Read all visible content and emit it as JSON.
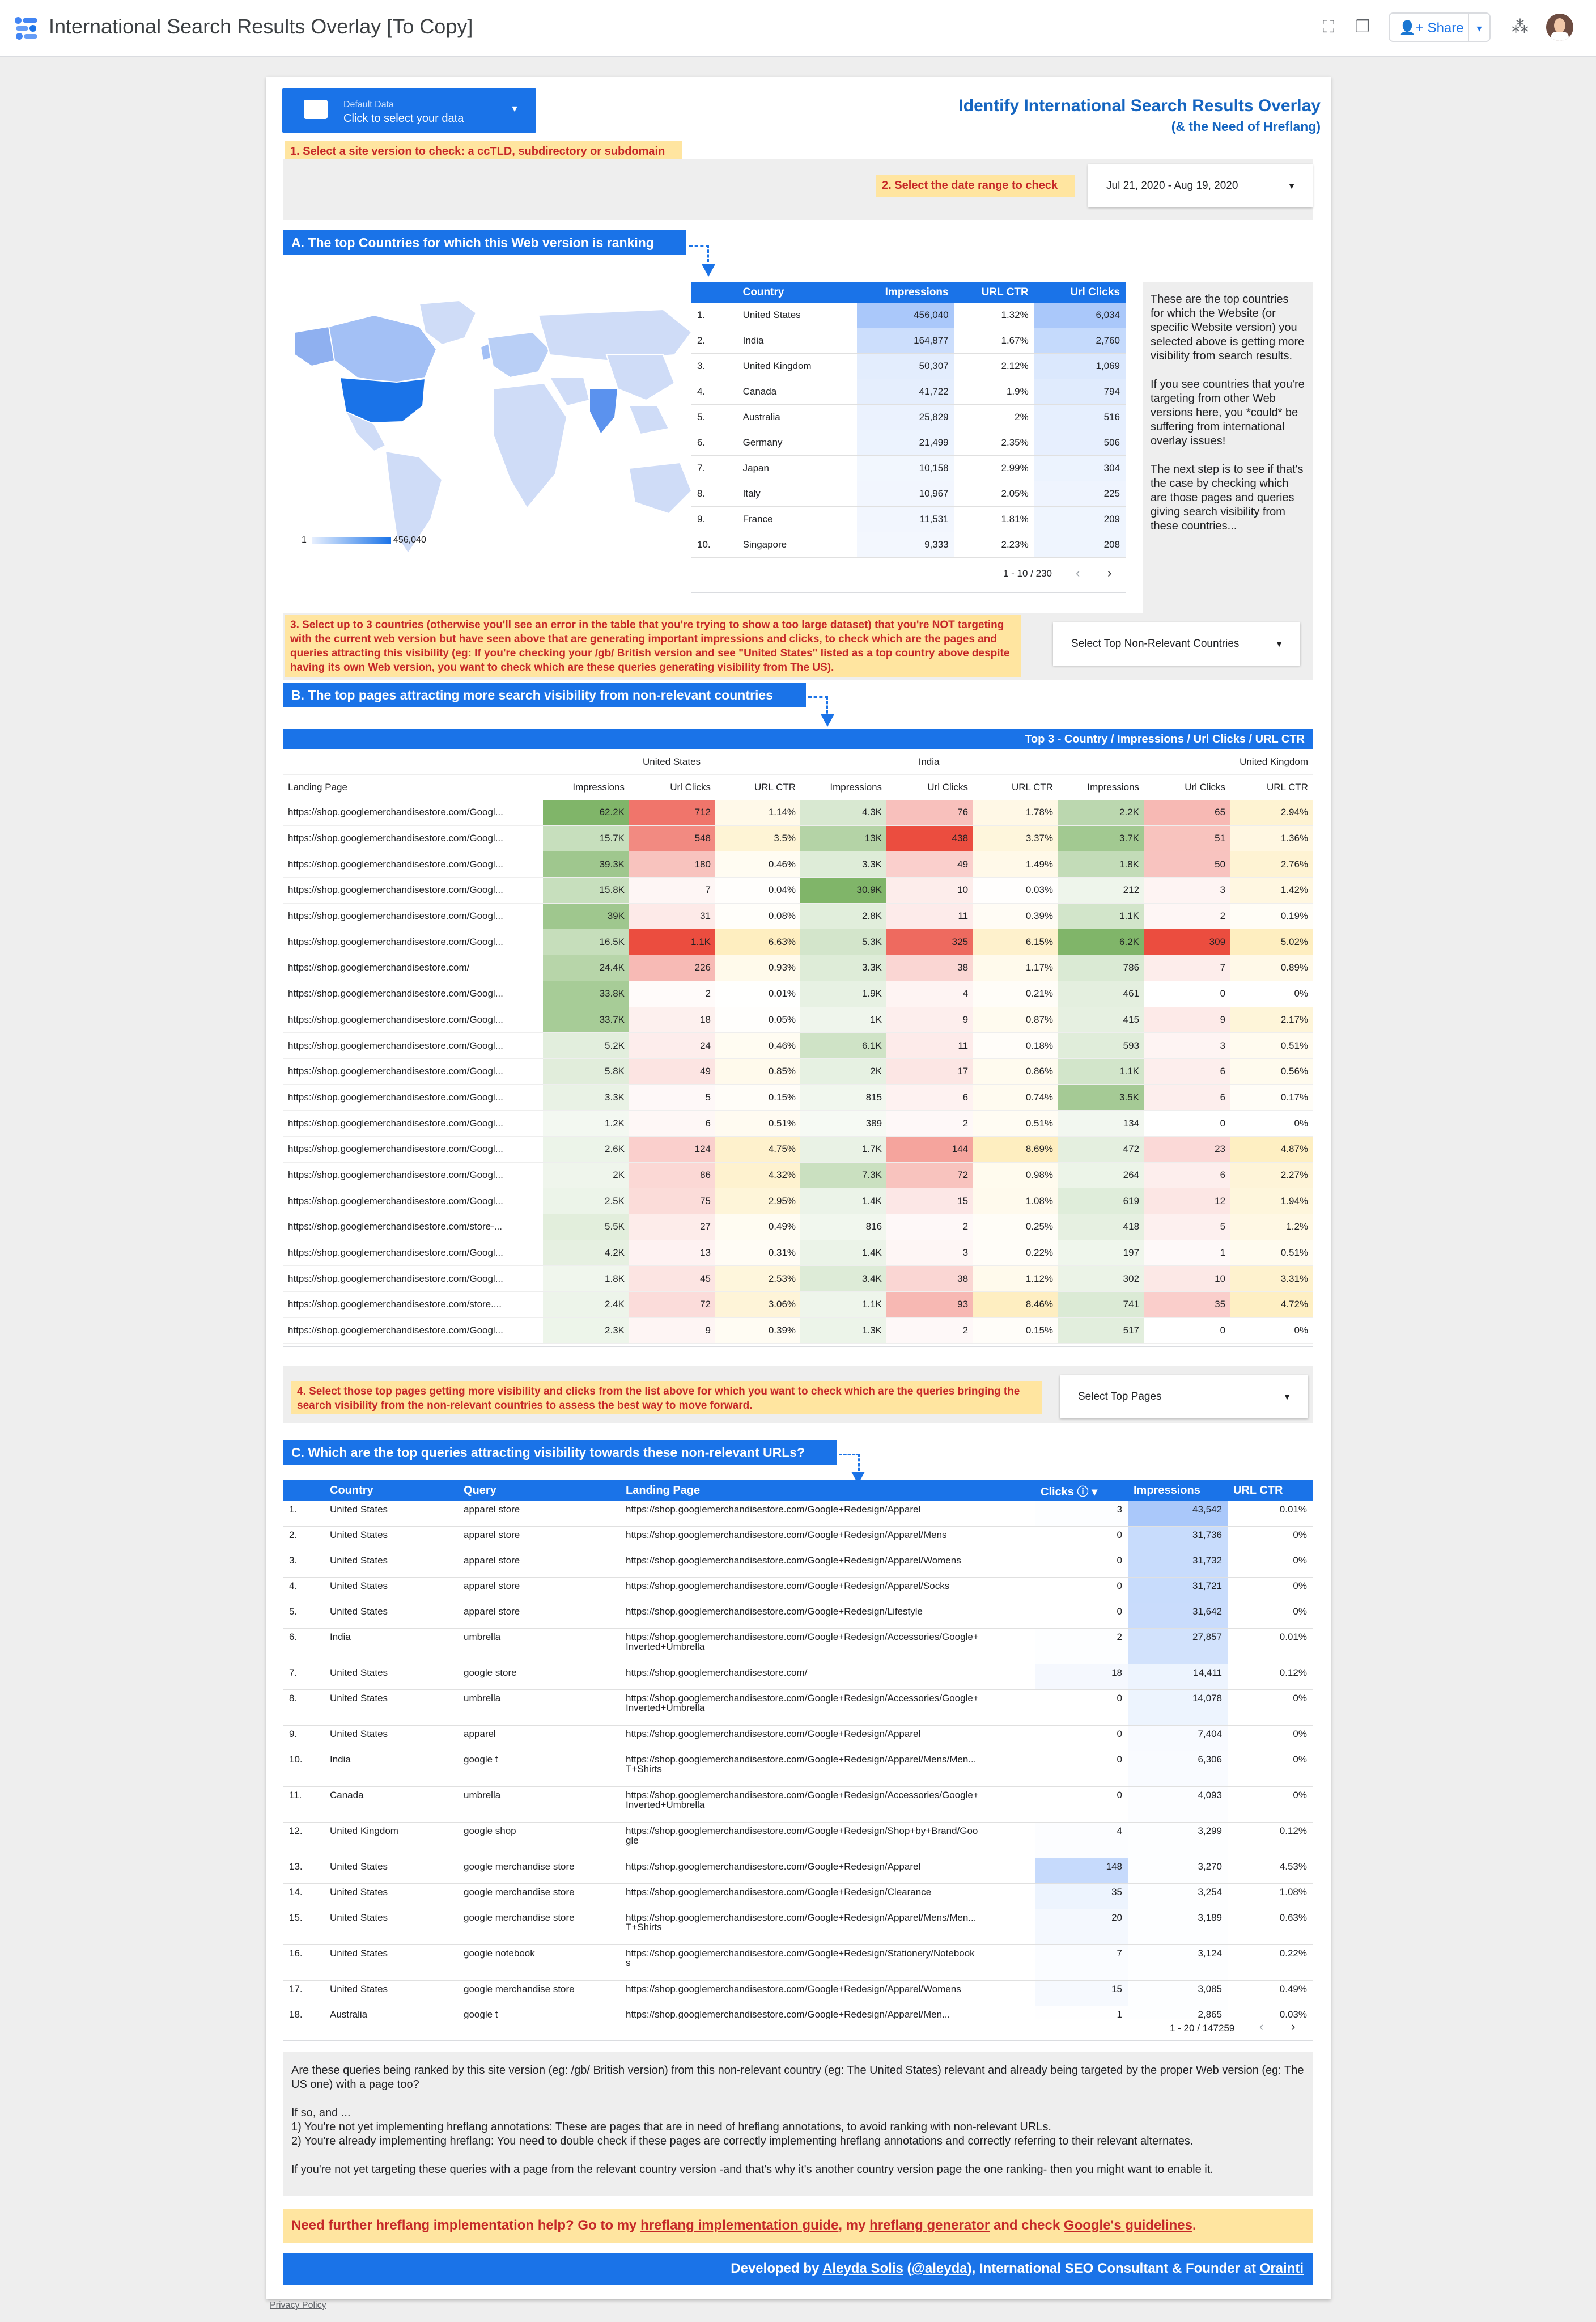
{
  "app": {
    "title": "International Search Results Overlay [To Copy]",
    "share_label": "Share",
    "privacy_label": "Privacy Policy"
  },
  "header": {
    "datasource_label": "Default Data",
    "datasource_cta": "Click to select your data",
    "title": "Identify International Search Results Overlay",
    "subtitle": "(& the Need of Hreflang)"
  },
  "steps": {
    "s1": "1. Select a site version to check: a ccTLD, subdirectory or subdomain",
    "s2": "2. Select the date range to check",
    "date_range": "Jul 21, 2020 - Aug 19, 2020",
    "s3": "3. Select up to 3 countries (otherwise you'll see an error in the table that you're trying to show a too large dataset) that you're NOT targeting with the current web version but have seen above that are generating important impressions and clicks, to check which are the pages and queries attracting this visibility (eg: If you're checking your /gb/ British version and see \"United States\" listed as a top country above despite having its own Web version, you want to check which are these queries generating visibility from The US).",
    "s3_dropdown": "Select Top Non-Relevant Countries",
    "s4": "4. Select those top pages getting more visibility and clicks from the list above for which you want to check which are the queries bringing the search visibility from the non-relevant countries to assess the best way to move forward.",
    "s4_dropdown": "Select Top Pages"
  },
  "sectionA": {
    "title": "A. The top Countries for which this Web version is ranking",
    "legend_min": "1",
    "legend_max": "456,040",
    "columns": [
      "Country",
      "Impressions",
      "URL CTR",
      "Url Clicks"
    ],
    "rows": [
      [
        "1.",
        "United States",
        "456,040",
        "1.32%",
        "6,034"
      ],
      [
        "2.",
        "India",
        "164,877",
        "1.67%",
        "2,760"
      ],
      [
        "3.",
        "United Kingdom",
        "50,307",
        "2.12%",
        "1,069"
      ],
      [
        "4.",
        "Canada",
        "41,722",
        "1.9%",
        "794"
      ],
      [
        "5.",
        "Australia",
        "25,829",
        "2%",
        "516"
      ],
      [
        "6.",
        "Germany",
        "21,499",
        "2.35%",
        "506"
      ],
      [
        "7.",
        "Japan",
        "10,158",
        "2.99%",
        "304"
      ],
      [
        "8.",
        "Italy",
        "10,967",
        "2.05%",
        "225"
      ],
      [
        "9.",
        "France",
        "11,531",
        "1.81%",
        "209"
      ],
      [
        "10.",
        "Singapore",
        "9,333",
        "2.23%",
        "208"
      ]
    ],
    "pager": "1 - 10 / 230",
    "explain": "These are the top countries for which the Website (or specific Website version) you selected above is getting more visibility from search results.\n\nIf you see countries that you're targeting from other Web versions here, you *could* be suffering from international overlay issues!\n\nThe next step is to see if that's the case by checking which are those pages and queries giving search visibility from these countries..."
  },
  "sectionB": {
    "title": "B. The top pages attracting more search visibility from non-relevant countries",
    "bar_title": "Top 3 - Country / Impressions / Url Clicks / URL CTR",
    "countries": [
      "United States",
      "India",
      "United Kingdom"
    ],
    "landing_header": "Landing Page",
    "metric_headers": [
      "Impressions",
      "Url Clicks",
      "URL CTR"
    ],
    "rows": [
      [
        "https://shop.googlemerchandisestore.com/Googl...",
        "62.2K",
        "712",
        "1.14%",
        "4.3K",
        "76",
        "1.78%",
        "2.2K",
        "65",
        "2.94%"
      ],
      [
        "https://shop.googlemerchandisestore.com/Googl...",
        "15.7K",
        "548",
        "3.5%",
        "13K",
        "438",
        "3.37%",
        "3.7K",
        "51",
        "1.36%"
      ],
      [
        "https://shop.googlemerchandisestore.com/Googl...",
        "39.3K",
        "180",
        "0.46%",
        "3.3K",
        "49",
        "1.49%",
        "1.8K",
        "50",
        "2.76%"
      ],
      [
        "https://shop.googlemerchandisestore.com/Googl...",
        "15.8K",
        "7",
        "0.04%",
        "30.9K",
        "10",
        "0.03%",
        "212",
        "3",
        "1.42%"
      ],
      [
        "https://shop.googlemerchandisestore.com/Googl...",
        "39K",
        "31",
        "0.08%",
        "2.8K",
        "11",
        "0.39%",
        "1.1K",
        "2",
        "0.19%"
      ],
      [
        "https://shop.googlemerchandisestore.com/Googl...",
        "16.5K",
        "1.1K",
        "6.63%",
        "5.3K",
        "325",
        "6.15%",
        "6.2K",
        "309",
        "5.02%"
      ],
      [
        "https://shop.googlemerchandisestore.com/",
        "24.4K",
        "226",
        "0.93%",
        "3.3K",
        "38",
        "1.17%",
        "786",
        "7",
        "0.89%"
      ],
      [
        "https://shop.googlemerchandisestore.com/Googl...",
        "33.8K",
        "2",
        "0.01%",
        "1.9K",
        "4",
        "0.21%",
        "461",
        "0",
        "0%"
      ],
      [
        "https://shop.googlemerchandisestore.com/Googl...",
        "33.7K",
        "18",
        "0.05%",
        "1K",
        "9",
        "0.87%",
        "415",
        "9",
        "2.17%"
      ],
      [
        "https://shop.googlemerchandisestore.com/Googl...",
        "5.2K",
        "24",
        "0.46%",
        "6.1K",
        "11",
        "0.18%",
        "593",
        "3",
        "0.51%"
      ],
      [
        "https://shop.googlemerchandisestore.com/Googl...",
        "5.8K",
        "49",
        "0.85%",
        "2K",
        "17",
        "0.86%",
        "1.1K",
        "6",
        "0.56%"
      ],
      [
        "https://shop.googlemerchandisestore.com/Googl...",
        "3.3K",
        "5",
        "0.15%",
        "815",
        "6",
        "0.74%",
        "3.5K",
        "6",
        "0.17%"
      ],
      [
        "https://shop.googlemerchandisestore.com/Googl...",
        "1.2K",
        "6",
        "0.51%",
        "389",
        "2",
        "0.51%",
        "134",
        "0",
        "0%"
      ],
      [
        "https://shop.googlemerchandisestore.com/Googl...",
        "2.6K",
        "124",
        "4.75%",
        "1.7K",
        "144",
        "8.69%",
        "472",
        "23",
        "4.87%"
      ],
      [
        "https://shop.googlemerchandisestore.com/Googl...",
        "2K",
        "86",
        "4.32%",
        "7.3K",
        "72",
        "0.98%",
        "264",
        "6",
        "2.27%"
      ],
      [
        "https://shop.googlemerchandisestore.com/Googl...",
        "2.5K",
        "75",
        "2.95%",
        "1.4K",
        "15",
        "1.08%",
        "619",
        "12",
        "1.94%"
      ],
      [
        "https://shop.googlemerchandisestore.com/store-...",
        "5.5K",
        "27",
        "0.49%",
        "816",
        "2",
        "0.25%",
        "418",
        "5",
        "1.2%"
      ],
      [
        "https://shop.googlemerchandisestore.com/Googl...",
        "4.2K",
        "13",
        "0.31%",
        "1.4K",
        "3",
        "0.22%",
        "197",
        "1",
        "0.51%"
      ],
      [
        "https://shop.googlemerchandisestore.com/Googl...",
        "1.8K",
        "45",
        "2.53%",
        "3.4K",
        "38",
        "1.12%",
        "302",
        "10",
        "3.31%"
      ],
      [
        "https://shop.googlemerchandisestore.com/store....",
        "2.4K",
        "72",
        "3.06%",
        "1.1K",
        "93",
        "8.46%",
        "741",
        "35",
        "4.72%"
      ],
      [
        "https://shop.googlemerchandisestore.com/Googl...",
        "2.3K",
        "9",
        "0.39%",
        "1.3K",
        "2",
        "0.15%",
        "517",
        "0",
        "0%"
      ]
    ]
  },
  "sectionC": {
    "title": "C. Which are the top queries attracting visibility towards these non-relevant URLs?",
    "columns": [
      "Country",
      "Query",
      "Landing Page",
      "Clicks",
      "Impressions",
      "URL CTR"
    ],
    "rows": [
      [
        "1.",
        "United States",
        "apparel store",
        "https://shop.googlemerchandisestore.com/Google+Redesign/Apparel",
        "3",
        "43,542",
        "0.01%"
      ],
      [
        "2.",
        "United States",
        "apparel store",
        "https://shop.googlemerchandisestore.com/Google+Redesign/Apparel/Mens",
        "0",
        "31,736",
        "0%"
      ],
      [
        "3.",
        "United States",
        "apparel store",
        "https://shop.googlemerchandisestore.com/Google+Redesign/Apparel/Womens",
        "0",
        "31,732",
        "0%"
      ],
      [
        "4.",
        "United States",
        "apparel store",
        "https://shop.googlemerchandisestore.com/Google+Redesign/Apparel/Socks",
        "0",
        "31,721",
        "0%"
      ],
      [
        "5.",
        "United States",
        "apparel store",
        "https://shop.googlemerchandisestore.com/Google+Redesign/Lifestyle",
        "0",
        "31,642",
        "0%"
      ],
      [
        "6.",
        "India",
        "umbrella",
        "https://shop.googlemerchandisestore.com/Google+Redesign/Accessories/Google+ Inverted+Umbrella",
        "2",
        "27,857",
        "0.01%"
      ],
      [
        "7.",
        "United States",
        "google store",
        "https://shop.googlemerchandisestore.com/",
        "18",
        "14,411",
        "0.12%"
      ],
      [
        "8.",
        "United States",
        "umbrella",
        "https://shop.googlemerchandisestore.com/Google+Redesign/Accessories/Google+ Inverted+Umbrella",
        "0",
        "14,078",
        "0%"
      ],
      [
        "9.",
        "United States",
        "apparel",
        "https://shop.googlemerchandisestore.com/Google+Redesign/Apparel",
        "0",
        "7,404",
        "0%"
      ],
      [
        "10.",
        "India",
        "google t",
        "https://shop.googlemerchandisestore.com/Google+Redesign/Apparel/Mens/Men... T+Shirts",
        "0",
        "6,306",
        "0%"
      ],
      [
        "11.",
        "Canada",
        "umbrella",
        "https://shop.googlemerchandisestore.com/Google+Redesign/Accessories/Google+ Inverted+Umbrella",
        "0",
        "4,093",
        "0%"
      ],
      [
        "12.",
        "United Kingdom",
        "google shop",
        "https://shop.googlemerchandisestore.com/Google+Redesign/Shop+by+Brand/Goo gle",
        "4",
        "3,299",
        "0.12%"
      ],
      [
        "13.",
        "United States",
        "google merchandise store",
        "https://shop.googlemerchandisestore.com/Google+Redesign/Apparel",
        "148",
        "3,270",
        "4.53%"
      ],
      [
        "14.",
        "United States",
        "google merchandise store",
        "https://shop.googlemerchandisestore.com/Google+Redesign/Clearance",
        "35",
        "3,254",
        "1.08%"
      ],
      [
        "15.",
        "United States",
        "google merchandise store",
        "https://shop.googlemerchandisestore.com/Google+Redesign/Apparel/Mens/Men... T+Shirts",
        "20",
        "3,189",
        "0.63%"
      ],
      [
        "16.",
        "United States",
        "google notebook",
        "https://shop.googlemerchandisestore.com/Google+Redesign/Stationery/Notebook s",
        "7",
        "3,124",
        "0.22%"
      ],
      [
        "17.",
        "United States",
        "google merchandise store",
        "https://shop.googlemerchandisestore.com/Google+Redesign/Apparel/Womens",
        "15",
        "3,085",
        "0.49%"
      ],
      [
        "18.",
        "Australia",
        "google t",
        "https://shop.googlemerchandisestore.com/Google+Redesign/Apparel/Men...",
        "1",
        "2,865",
        "0.03%"
      ]
    ],
    "pager": "1 - 20 / 147259"
  },
  "footer": {
    "text": "Are these queries being ranked by this site version (eg: /gb/ British version) from this non-relevant country (eg: The United States) relevant and already being targeted by the proper Web version (eg: The US one) with a page too?\n\nIf so, and ...\n1) You're not yet implementing hreflang annotations: These are pages that are in need of hreflang annotations, to avoid ranking with non-relevant URLs.\n2) You're already implementing hreflang: You need to double check if these pages are correctly implementing hreflang annotations and correctly referring to their relevant alternates.\n\nIf you're not yet targeting these queries with a page from the relevant country version -and that's why it's another country version page the one ranking- then you might want to enable it.",
    "help_prefix": "Need further hreflang implementation help? Go to my ",
    "help_link1": "hreflang implementation guide",
    "help_mid1": ", my ",
    "help_link2": "hreflang generator",
    "help_mid2": " and check ",
    "help_link3": "Google's guidelines",
    "help_end": ".",
    "dev_prefix": "Developed by ",
    "dev_link1": "Aleyda Solis",
    "dev_mid": " (",
    "dev_link2": "@aleyda",
    "dev_mid2": "), International SEO Consultant & Founder at ",
    "dev_link3": "Orainti"
  },
  "colors": {
    "accent": "#1a73e8",
    "step_bg": "#ffe5a0",
    "step_text": "#c62828"
  }
}
